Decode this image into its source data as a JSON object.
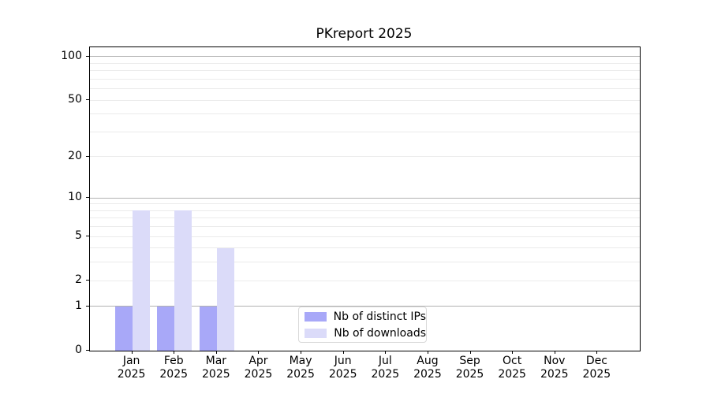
{
  "chart_data": {
    "type": "bar",
    "title": "PKreport 2025",
    "categories": [
      "Jan 2025",
      "Feb 2025",
      "Mar 2025",
      "Apr 2025",
      "May 2025",
      "Jun 2025",
      "Jul 2025",
      "Aug 2025",
      "Sep 2025",
      "Oct 2025",
      "Nov 2025",
      "Dec 2025"
    ],
    "series": [
      {
        "name": "Nb of distinct IPs",
        "color": "#a8a8f8",
        "values": [
          1,
          1,
          1,
          0,
          0,
          0,
          0,
          0,
          0,
          0,
          0,
          0
        ]
      },
      {
        "name": "Nb of downloads",
        "color": "#dbdbf9",
        "values": [
          8,
          8,
          4,
          0,
          0,
          0,
          0,
          0,
          0,
          0,
          0,
          0
        ]
      }
    ],
    "xlabel": "",
    "ylabel": "",
    "yticks": [
      0,
      1,
      2,
      5,
      10,
      20,
      50,
      100
    ],
    "yscale": "log10(1+x)",
    "ylim": [
      0,
      116
    ],
    "grid": "on",
    "grid_minor_values": [
      2,
      3,
      4,
      5,
      6,
      7,
      8,
      9,
      20,
      30,
      40,
      50,
      60,
      70,
      80,
      90
    ],
    "grid_major_values": [
      1,
      10,
      100
    ],
    "legend_position": "lower-center"
  },
  "colors": {
    "grid_minor": "#ebebeb",
    "grid_major": "#b2b2b2",
    "axis": "#000000",
    "legend_border": "#d9d9d9",
    "background": "#ffffff"
  }
}
